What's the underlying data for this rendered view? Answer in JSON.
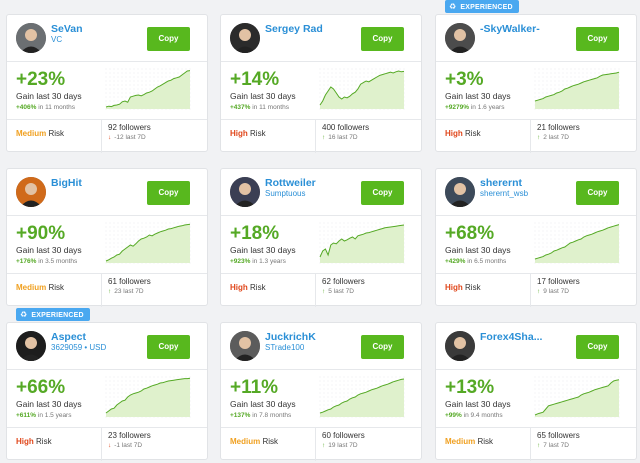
{
  "copy_label": "Copy",
  "gain_label": "Gain last 30 days",
  "risk_word": "Risk",
  "badge_label": "EXPERIENCED",
  "traders": [
    {
      "name": "SeVan",
      "sub": "VC",
      "gain": "+23%",
      "total_pct": "+406%",
      "total_period": "in 11 months",
      "risk": "Medium",
      "followers": "92 followers",
      "week": "-12 last 7D",
      "week_dir": "down",
      "badge": false,
      "spark": [
        0.05,
        0.07,
        0.06,
        0.09,
        0.1,
        0.12,
        0.18,
        0.2,
        0.17,
        0.3,
        0.32,
        0.34,
        0.35,
        0.33,
        0.36,
        0.4,
        0.42,
        0.45,
        0.5,
        0.55,
        0.58,
        0.62,
        0.66,
        0.7,
        0.72,
        0.76,
        0.78,
        0.8,
        0.85,
        0.9,
        0.95,
        0.96
      ]
    },
    {
      "name": "Sergey Rad",
      "sub": "",
      "gain": "+14%",
      "total_pct": "+437%",
      "total_period": "in 11 months",
      "risk": "High",
      "followers": "400 followers",
      "week": "16 last 7D",
      "week_dir": "up",
      "badge": false,
      "spark": [
        0.1,
        0.2,
        0.35,
        0.45,
        0.55,
        0.5,
        0.4,
        0.3,
        0.25,
        0.3,
        0.28,
        0.32,
        0.38,
        0.42,
        0.5,
        0.62,
        0.66,
        0.7,
        0.68,
        0.72,
        0.76,
        0.8,
        0.84,
        0.86,
        0.88,
        0.9,
        0.92,
        0.9,
        0.93,
        0.95,
        0.93,
        0.94
      ]
    },
    {
      "name": "-SkyWalker-",
      "sub": "",
      "gain": "+3%",
      "total_pct": "+9279%",
      "total_period": "in 1.6 years",
      "risk": "High",
      "followers": "21 followers",
      "week": "2 last 7D",
      "week_dir": "up",
      "badge": true,
      "spark": [
        0.2,
        0.22,
        0.24,
        0.26,
        0.3,
        0.32,
        0.34,
        0.36,
        0.4,
        0.42,
        0.45,
        0.5,
        0.52,
        0.55,
        0.58,
        0.6,
        0.62,
        0.65,
        0.68,
        0.7,
        0.72,
        0.74,
        0.76,
        0.78,
        0.82,
        0.85,
        0.86,
        0.87,
        0.88,
        0.89,
        0.9,
        0.92
      ]
    },
    {
      "name": "BigHit",
      "sub": "",
      "gain": "+90%",
      "total_pct": "+176%",
      "total_period": "in 3.5 months",
      "risk": "Medium",
      "followers": "61 followers",
      "week": "23 last 7D",
      "week_dir": "up",
      "badge": false,
      "spark": [
        0.05,
        0.08,
        0.12,
        0.15,
        0.2,
        0.22,
        0.3,
        0.35,
        0.4,
        0.45,
        0.42,
        0.48,
        0.55,
        0.6,
        0.62,
        0.65,
        0.7,
        0.68,
        0.72,
        0.75,
        0.78,
        0.8,
        0.82,
        0.85,
        0.86,
        0.88,
        0.9,
        0.92,
        0.93,
        0.95,
        0.96,
        0.97
      ]
    },
    {
      "name": "Rottweiler",
      "sub": "Sumptuous",
      "gain": "+18%",
      "total_pct": "+923%",
      "total_period": "in 1.3 years",
      "risk": "High",
      "followers": "62 followers",
      "week": "5 last 7D",
      "week_dir": "up",
      "badge": false,
      "spark": [
        0.15,
        0.3,
        0.35,
        0.2,
        0.45,
        0.5,
        0.48,
        0.55,
        0.6,
        0.55,
        0.58,
        0.62,
        0.65,
        0.6,
        0.68,
        0.7,
        0.72,
        0.75,
        0.76,
        0.78,
        0.8,
        0.82,
        0.84,
        0.86,
        0.88,
        0.89,
        0.9,
        0.91,
        0.92,
        0.93,
        0.94,
        0.95
      ]
    },
    {
      "name": "sherernt",
      "sub": "sherernt_wsb",
      "gain": "+68%",
      "total_pct": "+429%",
      "total_period": "in 6.5 months",
      "risk": "High",
      "followers": "17 followers",
      "week": "9 last 7D",
      "week_dir": "up",
      "badge": false,
      "spark": [
        0.1,
        0.12,
        0.14,
        0.16,
        0.2,
        0.22,
        0.25,
        0.3,
        0.32,
        0.35,
        0.38,
        0.4,
        0.45,
        0.5,
        0.52,
        0.55,
        0.58,
        0.6,
        0.65,
        0.68,
        0.7,
        0.72,
        0.75,
        0.78,
        0.8,
        0.82,
        0.85,
        0.88,
        0.9,
        0.92,
        0.94,
        0.96
      ]
    },
    {
      "name": "Aspect",
      "sub": "3629059 • USD",
      "gain": "+66%",
      "total_pct": "+611%",
      "total_period": "in 1.5 years",
      "risk": "High",
      "followers": "23 followers",
      "week": "-1 last 7D",
      "week_dir": "down",
      "badge": true,
      "spark": [
        0.1,
        0.15,
        0.2,
        0.22,
        0.3,
        0.35,
        0.4,
        0.42,
        0.5,
        0.55,
        0.58,
        0.6,
        0.62,
        0.65,
        0.7,
        0.72,
        0.75,
        0.78,
        0.8,
        0.82,
        0.85,
        0.86,
        0.88,
        0.9,
        0.91,
        0.92,
        0.93,
        0.94,
        0.95,
        0.96,
        0.96,
        0.97
      ]
    },
    {
      "name": "JuckrichK",
      "sub": "STrade100",
      "gain": "+11%",
      "total_pct": "+137%",
      "total_period": "in 7.8 months",
      "risk": "Medium",
      "followers": "60 followers",
      "week": "19 last 7D",
      "week_dir": "up",
      "badge": false,
      "spark": [
        0.1,
        0.12,
        0.15,
        0.18,
        0.2,
        0.25,
        0.28,
        0.3,
        0.35,
        0.38,
        0.4,
        0.45,
        0.48,
        0.5,
        0.55,
        0.58,
        0.6,
        0.62,
        0.65,
        0.68,
        0.7,
        0.72,
        0.75,
        0.78,
        0.8,
        0.82,
        0.85,
        0.88,
        0.9,
        0.92,
        0.94,
        0.95
      ]
    },
    {
      "name": "Forex4Sha...",
      "sub": "",
      "gain": "+13%",
      "total_pct": "+99%",
      "total_period": "in 9.4 months",
      "risk": "Medium",
      "followers": "65 followers",
      "week": "7 last 7D",
      "week_dir": "up",
      "badge": false,
      "spark": [
        0.05,
        0.08,
        0.1,
        0.12,
        0.2,
        0.28,
        0.3,
        0.32,
        0.34,
        0.36,
        0.38,
        0.4,
        0.42,
        0.44,
        0.46,
        0.48,
        0.5,
        0.55,
        0.58,
        0.6,
        0.62,
        0.65,
        0.68,
        0.7,
        0.72,
        0.74,
        0.76,
        0.78,
        0.85,
        0.9,
        0.92,
        0.93
      ]
    }
  ],
  "colors": {
    "accent": "#58b81e",
    "gain": "#55a925",
    "link": "#2a8fd6",
    "high": "#e0471b",
    "medium": "#f0a020",
    "badge": "#4aa8f0",
    "area": "#dff1cc"
  }
}
